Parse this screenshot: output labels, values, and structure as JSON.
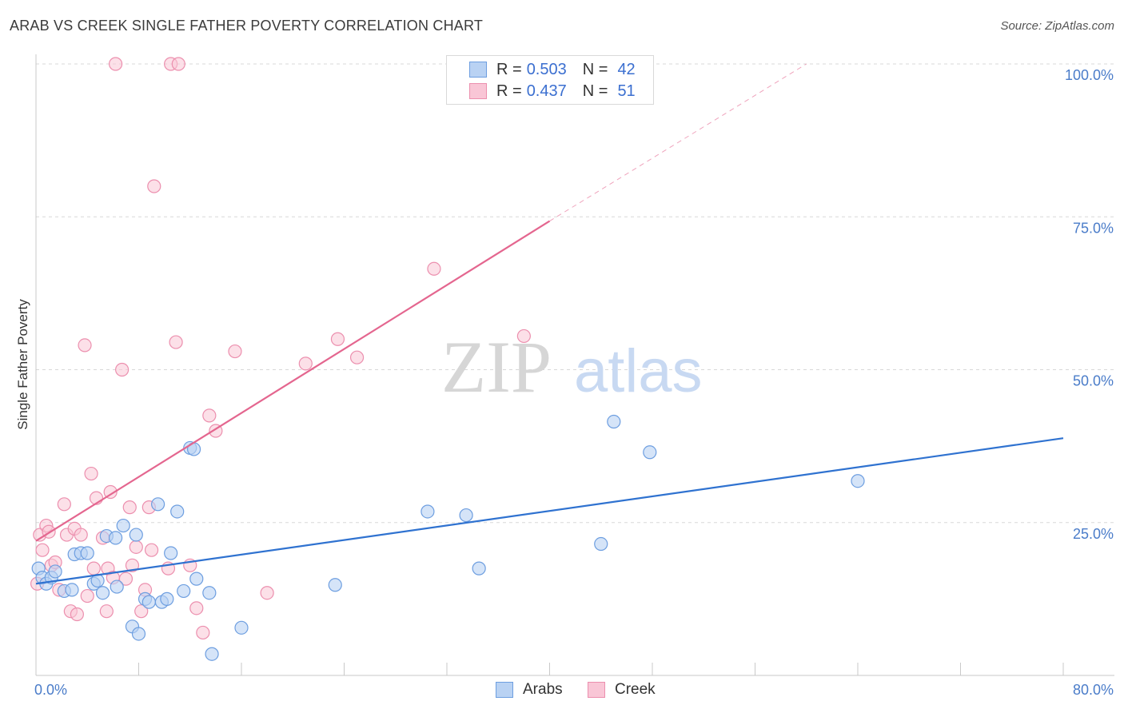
{
  "header": {
    "title": "ARAB VS CREEK SINGLE FATHER POVERTY CORRELATION CHART",
    "source": "Source: ZipAtlas.com"
  },
  "legend": {
    "arabs": {
      "r_label": "R =",
      "r_value": "0.503",
      "n_label": "N =",
      "n_value": "42"
    },
    "creek": {
      "r_label": "R =",
      "r_value": "0.437",
      "n_label": "N =",
      "n_value": "51"
    }
  },
  "bottom_legend": {
    "arabs": "Arabs",
    "creek": "Creek"
  },
  "watermark": {
    "zip": "ZIP",
    "atlas": "atlas"
  },
  "colors": {
    "arabs_fill": "#b9d2f3",
    "arabs_stroke": "#6d9ee0",
    "arabs_line": "#2f72d0",
    "creek_fill": "#f9c6d6",
    "creek_stroke": "#ec8fae",
    "creek_line": "#e4668f",
    "tick_text": "#4a7cc9",
    "grid": "#d8d8d8"
  },
  "chart_data": {
    "type": "scatter",
    "title": "ARAB VS CREEK SINGLE FATHER POVERTY CORRELATION CHART",
    "xlabel": "",
    "ylabel": "Single Father Poverty",
    "xlim": [
      0,
      80
    ],
    "ylim": [
      0,
      100
    ],
    "x_tick_labels": [
      "0.0%",
      "80.0%"
    ],
    "y_tick_labels": [
      "25.0%",
      "50.0%",
      "75.0%",
      "100.0%"
    ],
    "y_ticks": [
      25,
      50,
      75,
      100
    ],
    "series": [
      {
        "name": "Arabs",
        "r": 0.503,
        "n": 42,
        "trend": {
          "x": [
            0,
            80
          ],
          "y": [
            15.0,
            38.8
          ],
          "extends": "solid"
        },
        "points": [
          [
            0.2,
            17.5
          ],
          [
            0.5,
            16.0
          ],
          [
            0.8,
            15.0
          ],
          [
            1.2,
            16.0
          ],
          [
            1.5,
            17.0
          ],
          [
            2.2,
            13.8
          ],
          [
            2.8,
            14.0
          ],
          [
            3.0,
            19.8
          ],
          [
            3.5,
            20.0
          ],
          [
            4.0,
            20.0
          ],
          [
            4.5,
            15.0
          ],
          [
            4.8,
            15.5
          ],
          [
            5.2,
            13.5
          ],
          [
            5.5,
            22.8
          ],
          [
            6.2,
            22.5
          ],
          [
            6.3,
            14.5
          ],
          [
            6.8,
            24.5
          ],
          [
            7.5,
            8.0
          ],
          [
            7.8,
            23.0
          ],
          [
            8.0,
            6.8
          ],
          [
            8.5,
            12.5
          ],
          [
            8.8,
            12.0
          ],
          [
            9.5,
            28.0
          ],
          [
            9.8,
            12.0
          ],
          [
            10.2,
            12.5
          ],
          [
            10.5,
            20.0
          ],
          [
            11.0,
            26.8
          ],
          [
            11.5,
            13.8
          ],
          [
            12.0,
            37.2
          ],
          [
            12.3,
            37.0
          ],
          [
            12.5,
            15.8
          ],
          [
            13.5,
            13.5
          ],
          [
            13.7,
            3.5
          ],
          [
            16.0,
            7.8
          ],
          [
            23.3,
            14.8
          ],
          [
            30.5,
            26.8
          ],
          [
            33.5,
            26.2
          ],
          [
            34.5,
            17.5
          ],
          [
            44.0,
            21.5
          ],
          [
            45.0,
            41.5
          ],
          [
            47.8,
            36.5
          ],
          [
            64.0,
            31.8
          ]
        ]
      },
      {
        "name": "Creek",
        "r": 0.437,
        "n": 51,
        "trend": {
          "x": [
            0,
            40
          ],
          "y": [
            22.0,
            74.3
          ],
          "dashed_to": {
            "x": 60,
            "y": 100
          }
        },
        "points": [
          [
            0.1,
            15.0
          ],
          [
            0.3,
            23.0
          ],
          [
            0.5,
            20.5
          ],
          [
            0.8,
            24.5
          ],
          [
            1.0,
            23.5
          ],
          [
            1.2,
            18.0
          ],
          [
            1.5,
            18.5
          ],
          [
            1.8,
            14.0
          ],
          [
            2.2,
            28.0
          ],
          [
            2.4,
            23.0
          ],
          [
            2.7,
            10.5
          ],
          [
            3.0,
            24.0
          ],
          [
            3.2,
            10.0
          ],
          [
            3.5,
            23.0
          ],
          [
            4.0,
            13.0
          ],
          [
            3.8,
            54.0
          ],
          [
            4.3,
            33.0
          ],
          [
            4.5,
            17.5
          ],
          [
            4.7,
            29.0
          ],
          [
            5.2,
            22.5
          ],
          [
            5.5,
            10.5
          ],
          [
            5.6,
            17.5
          ],
          [
            5.8,
            30.0
          ],
          [
            6.0,
            16.0
          ],
          [
            6.2,
            100.0
          ],
          [
            6.7,
            50.0
          ],
          [
            7.0,
            15.8
          ],
          [
            7.3,
            27.5
          ],
          [
            7.5,
            18.0
          ],
          [
            7.8,
            21.0
          ],
          [
            8.2,
            10.5
          ],
          [
            8.5,
            14.0
          ],
          [
            8.8,
            27.5
          ],
          [
            9.0,
            20.5
          ],
          [
            9.2,
            80.0
          ],
          [
            10.3,
            17.5
          ],
          [
            10.5,
            100.0
          ],
          [
            10.9,
            54.5
          ],
          [
            11.1,
            100.0
          ],
          [
            12.5,
            11.0
          ],
          [
            13.0,
            7.0
          ],
          [
            13.5,
            42.5
          ],
          [
            14.0,
            40.0
          ],
          [
            15.5,
            53.0
          ],
          [
            18.0,
            13.5
          ],
          [
            21.0,
            51.0
          ],
          [
            23.5,
            55.0
          ],
          [
            25.0,
            52.0
          ],
          [
            31.0,
            66.5
          ],
          [
            38.0,
            55.5
          ],
          [
            12.0,
            18.0
          ]
        ]
      }
    ]
  }
}
